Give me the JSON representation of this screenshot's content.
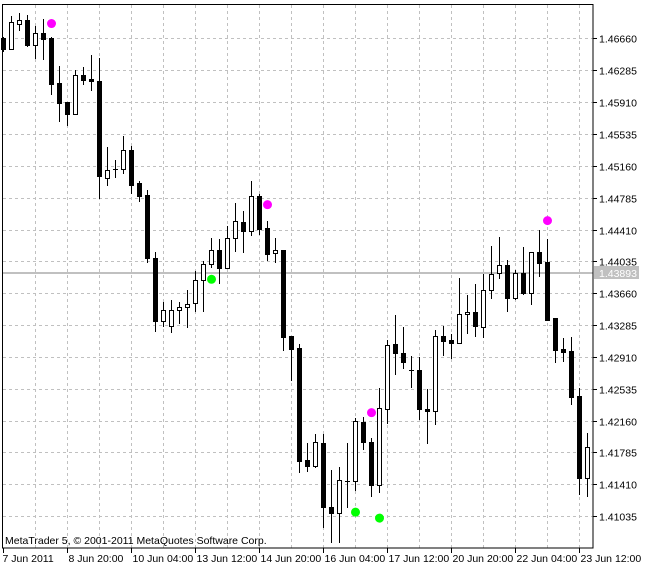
{
  "window": {
    "copyright": "MetaTrader 5, © 2001-2011 MetaQuotes Software Corp."
  },
  "chart_data": {
    "type": "candlestick",
    "timeframe_hours": 4,
    "x_tick_labels": [
      "7 Jun 2011",
      "8 Jun 20:00",
      "10 Jun 04:00",
      "13 Jun 12:00",
      "14 Jun 20:00",
      "16 Jun 04:00",
      "17 Jun 12:00",
      "20 Jun 20:00",
      "22 Jun 04:00",
      "23 Jun 12:00"
    ],
    "x_tick_every_bars": 8,
    "y_tick_labels": [
      "1.46660",
      "1.46285",
      "1.45910",
      "1.45535",
      "1.45160",
      "1.44785",
      "1.44410",
      "1.44035",
      "1.43660",
      "1.43285",
      "1.42910",
      "1.42535",
      "1.42160",
      "1.41785",
      "1.41410",
      "1.41035"
    ],
    "ylim": [
      1.4066,
      1.4706
    ],
    "grid": true,
    "current_price": "1.43893",
    "colors": {
      "bull_body": "#ffffff",
      "bear_body": "#000000",
      "grid": "#c0c0c0",
      "current_line": "#c0c0c0",
      "up_fractal": "#ff00ff",
      "down_fractal": "#00ff00"
    },
    "ohlc": [
      [
        1.4666,
        1.46683,
        1.46508,
        1.46531
      ],
      [
        1.46531,
        1.4693,
        1.46531,
        1.46859
      ],
      [
        1.46836,
        1.46965,
        1.46765,
        1.46883
      ],
      [
        1.46883,
        1.46941,
        1.46566,
        1.46578
      ],
      [
        1.46578,
        1.46801,
        1.46426,
        1.46719
      ],
      [
        1.46719,
        1.46894,
        1.46414,
        1.46648
      ],
      [
        1.4666,
        1.46683,
        1.46004,
        1.46121
      ],
      [
        1.46133,
        1.46332,
        1.45687,
        1.45898
      ],
      [
        1.4591,
        1.4591,
        1.4564,
        1.45769
      ],
      [
        1.45769,
        1.46285,
        1.45769,
        1.46226
      ],
      [
        1.46226,
        1.4632,
        1.46121,
        1.46168
      ],
      [
        1.4618,
        1.46461,
        1.46051,
        1.46156
      ],
      [
        1.46156,
        1.46426,
        1.44785,
        1.45043
      ],
      [
        1.45019,
        1.45383,
        1.44937,
        1.45113
      ],
      [
        1.45125,
        1.4523,
        1.45031,
        1.45125
      ],
      [
        1.45125,
        1.45512,
        1.45078,
        1.45348
      ],
      [
        1.45348,
        1.45394,
        1.44844,
        1.44937
      ],
      [
        1.44961,
        1.44984,
        1.4475,
        1.44809
      ],
      [
        1.4482,
        1.44879,
        1.44023,
        1.4407
      ],
      [
        1.4407,
        1.4414,
        1.43215,
        1.43332
      ],
      [
        1.43332,
        1.43555,
        1.43273,
        1.43461
      ],
      [
        1.43273,
        1.43578,
        1.43203,
        1.43461
      ],
      [
        1.43461,
        1.43555,
        1.43309,
        1.43496
      ],
      [
        1.43496,
        1.43695,
        1.43262,
        1.43531
      ],
      [
        1.43543,
        1.43918,
        1.43449,
        1.43812
      ],
      [
        1.43812,
        1.44035,
        1.43449,
        1.44
      ],
      [
        1.44,
        1.44305,
        1.43965,
        1.44164
      ],
      [
        1.44164,
        1.44293,
        1.43777,
        1.43953
      ],
      [
        1.43953,
        1.44457,
        1.43953,
        1.44316
      ],
      [
        1.44316,
        1.44726,
        1.44152,
        1.44515
      ],
      [
        1.44504,
        1.44633,
        1.4414,
        1.44387
      ],
      [
        1.44387,
        1.44984,
        1.4434,
        1.44808
      ],
      [
        1.44808,
        1.44832,
        1.44363,
        1.44422
      ],
      [
        1.44433,
        1.44515,
        1.44047,
        1.44117
      ],
      [
        1.44129,
        1.44305,
        1.44023,
        1.44164
      ],
      [
        1.44164,
        1.44164,
        1.42992,
        1.43145
      ],
      [
        1.43156,
        1.43156,
        1.42641,
        1.43004
      ],
      [
        1.43016,
        1.43062,
        1.41551,
        1.4168
      ],
      [
        1.41691,
        1.41902,
        1.41562,
        1.41621
      ],
      [
        1.41621,
        1.42008,
        1.41609,
        1.41914
      ],
      [
        1.41902,
        1.42008,
        1.40906,
        1.41141
      ],
      [
        1.41141,
        1.41574,
        1.4073,
        1.4107
      ],
      [
        1.4107,
        1.41609,
        1.4073,
        1.41457
      ],
      [
        1.41445,
        1.41891,
        1.41141,
        1.41445
      ],
      [
        1.41445,
        1.42195,
        1.4134,
        1.4216
      ],
      [
        1.42148,
        1.42207,
        1.4182,
        1.41914
      ],
      [
        1.41914,
        1.41961,
        1.4127,
        1.41398
      ],
      [
        1.41398,
        1.42547,
        1.41316,
        1.42312
      ],
      [
        1.42301,
        1.43109,
        1.42137,
        1.43051
      ],
      [
        1.43062,
        1.43402,
        1.42711,
        1.42957
      ],
      [
        1.42957,
        1.43262,
        1.42781,
        1.42852
      ],
      [
        1.42758,
        1.42922,
        1.42559,
        1.42758
      ],
      [
        1.42758,
        1.4291,
        1.42184,
        1.42301
      ],
      [
        1.42301,
        1.42535,
        1.41902,
        1.42277
      ],
      [
        1.42277,
        1.43227,
        1.42125,
        1.43156
      ],
      [
        1.43156,
        1.43273,
        1.42934,
        1.43098
      ],
      [
        1.43109,
        1.4318,
        1.42898,
        1.43074
      ],
      [
        1.43074,
        1.43836,
        1.43074,
        1.43414
      ],
      [
        1.43414,
        1.43637,
        1.43191,
        1.43437
      ],
      [
        1.43437,
        1.43766,
        1.43156,
        1.43273
      ],
      [
        1.43262,
        1.43883,
        1.43145,
        1.43695
      ],
      [
        1.43695,
        1.44211,
        1.43602,
        1.43883
      ],
      [
        1.43895,
        1.44328,
        1.43836,
        1.43988
      ],
      [
        1.43988,
        1.44047,
        1.43449,
        1.43602
      ],
      [
        1.43602,
        1.4393,
        1.4359,
        1.43895
      ],
      [
        1.43895,
        1.44199,
        1.43648,
        1.4366
      ],
      [
        1.4366,
        1.44141,
        1.43531,
        1.44141
      ],
      [
        1.44141,
        1.4441,
        1.43859,
        1.44012
      ],
      [
        1.44023,
        1.44293,
        1.43344,
        1.43344
      ],
      [
        1.43367,
        1.43367,
        1.42852,
        1.42992
      ],
      [
        1.43004,
        1.43133,
        1.42863,
        1.42969
      ],
      [
        1.4298,
        1.43145,
        1.42359,
        1.42441
      ],
      [
        1.42453,
        1.42547,
        1.41293,
        1.4148
      ],
      [
        1.4148,
        1.4202,
        1.4127,
        1.41844
      ]
    ],
    "markers": [
      {
        "bar": 6,
        "price": 1.46836,
        "type": "up"
      },
      {
        "bar": 26,
        "price": 1.43824,
        "type": "down"
      },
      {
        "bar": 33,
        "price": 1.44703,
        "type": "up"
      },
      {
        "bar": 44,
        "price": 1.41082,
        "type": "down"
      },
      {
        "bar": 46,
        "price": 1.42254,
        "type": "up"
      },
      {
        "bar": 47,
        "price": 1.41012,
        "type": "down"
      },
      {
        "bar": 68,
        "price": 1.44515,
        "type": "up"
      }
    ]
  }
}
